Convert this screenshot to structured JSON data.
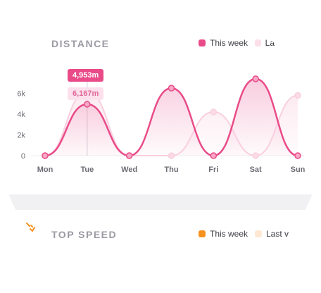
{
  "distance_card": {
    "title": "DISTANCE",
    "legend": [
      {
        "label": "This week",
        "color": "#e94b88"
      },
      {
        "label": "La",
        "color": "#fbe0ea"
      }
    ],
    "tooltips": [
      "4,953m",
      "6,167m"
    ]
  },
  "speed_card": {
    "title": "TOP SPEED",
    "icon": "lightning-icon",
    "legend": [
      {
        "label": "This week",
        "color": "#f7921e"
      },
      {
        "label": "Last v",
        "color": "#fde8d3"
      }
    ]
  },
  "chart_data": {
    "type": "area",
    "categories": [
      "Mon",
      "Tue",
      "Wed",
      "Thu",
      "Fri",
      "Sat",
      "Sun"
    ],
    "yticks": [
      "0",
      "2k",
      "4k",
      "6k"
    ],
    "ylim": [
      0,
      8000
    ],
    "series": [
      {
        "name": "This week",
        "color": "#e94b88",
        "values": [
          0,
          4953,
          0,
          6500,
          0,
          7400,
          0
        ]
      },
      {
        "name": "La",
        "color": "#fbe0ea",
        "values": [
          0,
          6167,
          0,
          0,
          4200,
          0,
          5800
        ]
      }
    ]
  }
}
